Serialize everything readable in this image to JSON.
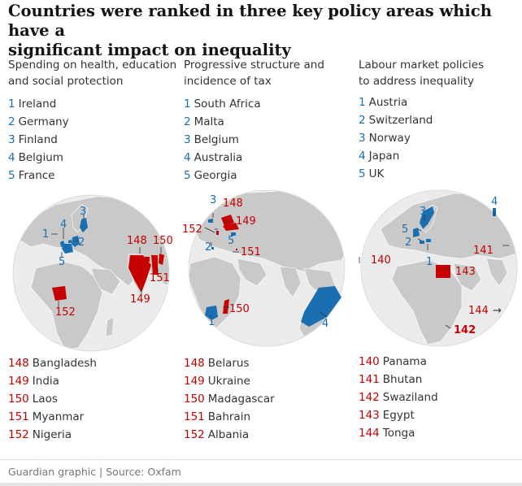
{
  "title": {
    "line1": "Countries were ranked in three key policy areas which have a",
    "line2": "significant impact on inequality"
  },
  "columns": [
    {
      "heading": [
        "Spending on health, education",
        "and social protection"
      ],
      "top5": [
        {
          "rank": "1",
          "country": "Ireland"
        },
        {
          "rank": "2",
          "country": "Germany"
        },
        {
          "rank": "3",
          "country": "Finland"
        },
        {
          "rank": "4",
          "country": "Belgium"
        },
        {
          "rank": "5",
          "country": "France"
        }
      ],
      "bottom5": [
        {
          "rank": "148",
          "country": "Bangladesh"
        },
        {
          "rank": "149",
          "country": "India"
        },
        {
          "rank": "150",
          "country": "Laos"
        },
        {
          "rank": "151",
          "country": "Myanmar"
        },
        {
          "rank": "152",
          "country": "Nigeria"
        }
      ],
      "map_labels": {
        "l1": "1",
        "l2": "2",
        "l3": "3",
        "l4": "4",
        "l5": "5",
        "l148": "148",
        "l149": "149",
        "l150": "150",
        "l151": "151",
        "l152": "152"
      }
    },
    {
      "heading": [
        "Progressive structure and",
        "incidence of tax"
      ],
      "top5": [
        {
          "rank": "1",
          "country": "South Africa"
        },
        {
          "rank": "2",
          "country": "Malta"
        },
        {
          "rank": "3",
          "country": "Belgium"
        },
        {
          "rank": "4",
          "country": "Australia"
        },
        {
          "rank": "5",
          "country": "Georgia"
        }
      ],
      "bottom5": [
        {
          "rank": "148",
          "country": "Belarus"
        },
        {
          "rank": "149",
          "country": "Ukraine"
        },
        {
          "rank": "150",
          "country": "Madagascar"
        },
        {
          "rank": "151",
          "country": "Bahrain"
        },
        {
          "rank": "152",
          "country": "Albania"
        }
      ],
      "map_labels": {
        "l1": "1",
        "l2": "2",
        "l3": "3",
        "l4": "4",
        "l5": "5",
        "l148": "148",
        "l149": "149",
        "l150": "150",
        "l151": "151",
        "l152": "152"
      }
    },
    {
      "heading": [
        "Labour market policies",
        "to address inequality"
      ],
      "top5": [
        {
          "rank": "1",
          "country": "Austria"
        },
        {
          "rank": "2",
          "country": "Switzerland"
        },
        {
          "rank": "3",
          "country": "Norway"
        },
        {
          "rank": "4",
          "country": "Japan"
        },
        {
          "rank": "5",
          "country": "UK"
        }
      ],
      "bottom5": [
        {
          "rank": "140",
          "country": "Panama"
        },
        {
          "rank": "141",
          "country": "Bhutan"
        },
        {
          "rank": "142",
          "country": "Swaziland"
        },
        {
          "rank": "143",
          "country": "Egypt"
        },
        {
          "rank": "144",
          "country": "Tonga"
        }
      ],
      "map_labels": {
        "l1": "1",
        "l2": "2",
        "l3": "3",
        "l4": "4",
        "l5": "5",
        "l140": "140",
        "l141": "141",
        "l142": "142",
        "l143": "143",
        "l144": "144",
        "arrow": "→"
      }
    }
  ],
  "colors": {
    "top": "#1a6fb0",
    "bottom": "#c70000",
    "land": "#c9c9c9",
    "ocean": "#ebebeb"
  },
  "footer": "Guardian graphic | Source: Oxfam"
}
